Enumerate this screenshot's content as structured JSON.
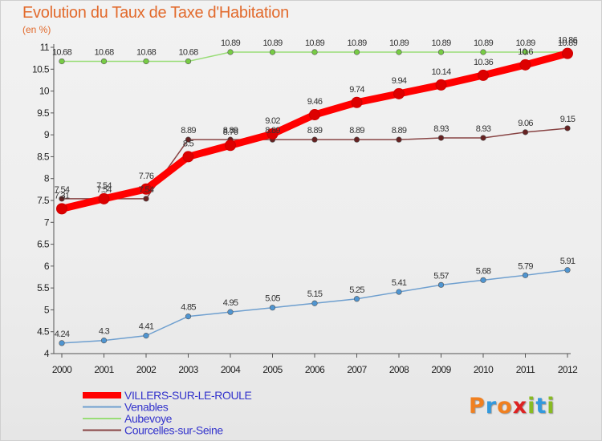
{
  "chart_data": {
    "type": "line",
    "title": "Evolution du Taux de Taxe d'Habitation",
    "subtitle": "(en %)",
    "xlabel": "",
    "ylabel": "(en %)",
    "categories": [
      "2000",
      "2001",
      "2002",
      "2003",
      "2004",
      "2005",
      "2006",
      "2007",
      "2008",
      "2009",
      "2010",
      "2011",
      "2012"
    ],
    "ylim": [
      4,
      11
    ],
    "yticks": [
      "4",
      "4.5",
      "5",
      "5.5",
      "6",
      "6.5",
      "7",
      "7.5",
      "8",
      "8.5",
      "9",
      "9.5",
      "10",
      "10.5",
      "11"
    ],
    "grid": false,
    "legend_position": "bottom-left",
    "series": [
      {
        "name": "VILLERS-SUR-LE-ROULE",
        "color": "#ff0000",
        "marker_color": "#dd0000",
        "emphasis": "thick",
        "legend_text_color": "#3333cc",
        "values": [
          7.31,
          7.54,
          7.76,
          8.5,
          8.76,
          9.02,
          9.46,
          9.74,
          9.94,
          10.14,
          10.36,
          10.6,
          10.86
        ],
        "labels": [
          "7.31",
          "7.54",
          "7.76",
          "8.5",
          "8.76",
          "9.02",
          "9.46",
          "9.74",
          "9.94",
          "10.14",
          "10.36",
          "10.6",
          "10.86"
        ]
      },
      {
        "name": "Venables",
        "color": "#6e9fcf",
        "marker_color": "#4f95d1",
        "emphasis": "thin",
        "legend_text_color": "#3333cc",
        "values": [
          4.24,
          4.3,
          4.41,
          4.85,
          4.95,
          5.05,
          5.15,
          5.25,
          5.41,
          5.57,
          5.68,
          5.79,
          5.91
        ],
        "labels": [
          "4.24",
          "4.3",
          "4.41",
          "4.85",
          "4.95",
          "5.05",
          "5.15",
          "5.25",
          "5.41",
          "5.57",
          "5.68",
          "5.79",
          "5.91"
        ]
      },
      {
        "name": "Aubevoye",
        "color": "#99dd77",
        "marker_color": "#77cc44",
        "emphasis": "thin",
        "legend_text_color": "#3333cc",
        "values": [
          10.68,
          10.68,
          10.68,
          10.68,
          10.89,
          10.89,
          10.89,
          10.89,
          10.89,
          10.89,
          10.89,
          10.89,
          10.89
        ],
        "labels": [
          "10.68",
          "10.68",
          "10.68",
          "10.68",
          "10.89",
          "10.89",
          "10.89",
          "10.89",
          "10.89",
          "10.89",
          "10.89",
          "10.89",
          "10.89"
        ]
      },
      {
        "name": "Courcelles-sur-Seine",
        "color": "#884444",
        "marker_color": "#662222",
        "emphasis": "thin",
        "legend_text_color": "#3333cc",
        "values": [
          7.54,
          7.54,
          7.54,
          8.89,
          8.89,
          8.89,
          8.89,
          8.89,
          8.89,
          8.93,
          8.93,
          9.06,
          9.15
        ],
        "labels": [
          "7.54",
          "7.54",
          "7.54",
          "8.89",
          "8.89",
          "8.89",
          "8.89",
          "8.89",
          "8.89",
          "8.93",
          "8.93",
          "9.06",
          "9.15"
        ]
      }
    ]
  },
  "brand": {
    "name": "Proxiti",
    "letters": [
      "P",
      "r",
      "o",
      "x",
      "i",
      "t",
      "i"
    ],
    "letter_colors": [
      "#f08020",
      "#3399dd",
      "#f08020",
      "#dd2222",
      "#88bb22",
      "#3399dd",
      "#88bb22"
    ]
  }
}
